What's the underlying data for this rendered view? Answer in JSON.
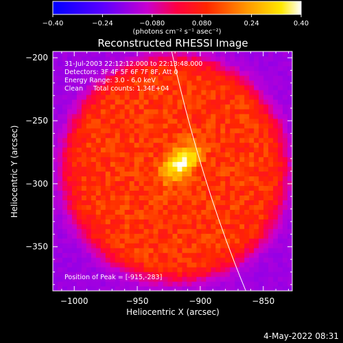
{
  "chart_data": {
    "type": "heatmap",
    "title": "Reconstructed RHESSI Image",
    "xlabel": "Heliocentric X (arcsec)",
    "ylabel": "Heliocentric Y (arcsec)",
    "xlim": [
      -1017,
      -827
    ],
    "ylim": [
      -385,
      -195
    ],
    "xticks": [
      -1000,
      -950,
      -900,
      -850
    ],
    "yticks": [
      -200,
      -250,
      -300,
      -350
    ],
    "xtick_labels": [
      "−1000",
      "−950",
      "−900",
      "−850"
    ],
    "ytick_labels": [
      "−200",
      "−250",
      "−300",
      "−350"
    ],
    "colorbar": {
      "min": -0.4,
      "max": 0.4,
      "ticks": [
        -0.4,
        -0.24,
        -0.08,
        0.08,
        0.24,
        0.4
      ],
      "tick_labels": [
        "−0.40",
        "−0.24",
        "−0.080",
        "0.080",
        "0.24",
        "0.40"
      ],
      "units": "(photons cm⁻² s⁻¹ asec⁻²)"
    },
    "annotations": [
      "31-Jul-2003 22:12:12.000 to 22:13:48.000",
      "Detectors: 3F 4F 5F 6F 7F 8F, Att 0",
      "Energy Range: 3.0 - 6.0 keV",
      "Clean     Total counts: 1.34E+04"
    ],
    "peak_label": "Position of Peak = [-915,-283]",
    "peak": {
      "x": -915,
      "y": -283,
      "value": 0.4
    },
    "source_center": {
      "x": -920,
      "y": -288
    },
    "source_radius": 88,
    "background_level": -0.15,
    "emission_level": 0.11,
    "grid": false
  },
  "footer": {
    "timestamp": "4-May-2022 08:31"
  }
}
